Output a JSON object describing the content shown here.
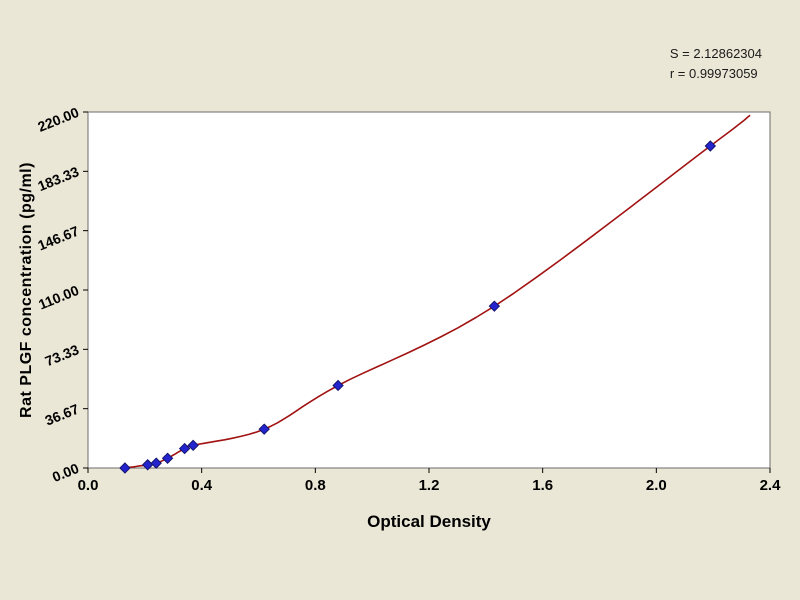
{
  "page": {
    "background_color": "#ebe7d6",
    "plot_background_color": "#ffffff"
  },
  "stats": {
    "s_line": "S = 2.12862304",
    "r_line": "r = 0.99973059"
  },
  "chart_data": {
    "type": "scatter",
    "title": "",
    "xlabel": "Optical Density",
    "ylabel": "Rat PLGF concentration (pg/ml)",
    "xlim": [
      0,
      2.4
    ],
    "ylim": [
      0,
      220
    ],
    "x_ticks": [
      "0.0",
      "0.4",
      "0.8",
      "1.2",
      "1.6",
      "2.0",
      "2.4"
    ],
    "y_ticks": [
      "0.00",
      "36.67",
      "73.33",
      "110.00",
      "146.67",
      "183.33",
      "220.00"
    ],
    "grid": false,
    "legend": "none",
    "series": [
      {
        "name": "standard-points",
        "marker": "diamond",
        "color": "#2424cf",
        "x": [
          0.13,
          0.21,
          0.24,
          0.28,
          0.34,
          0.37,
          0.62,
          0.88,
          1.43,
          2.19
        ],
        "y": [
          0,
          2,
          3,
          6,
          12,
          14,
          24,
          51,
          100,
          199
        ]
      }
    ],
    "fit_curve": {
      "color": "#a11212",
      "extends_to_x": 2.33,
      "extends_to_y": 218
    }
  }
}
